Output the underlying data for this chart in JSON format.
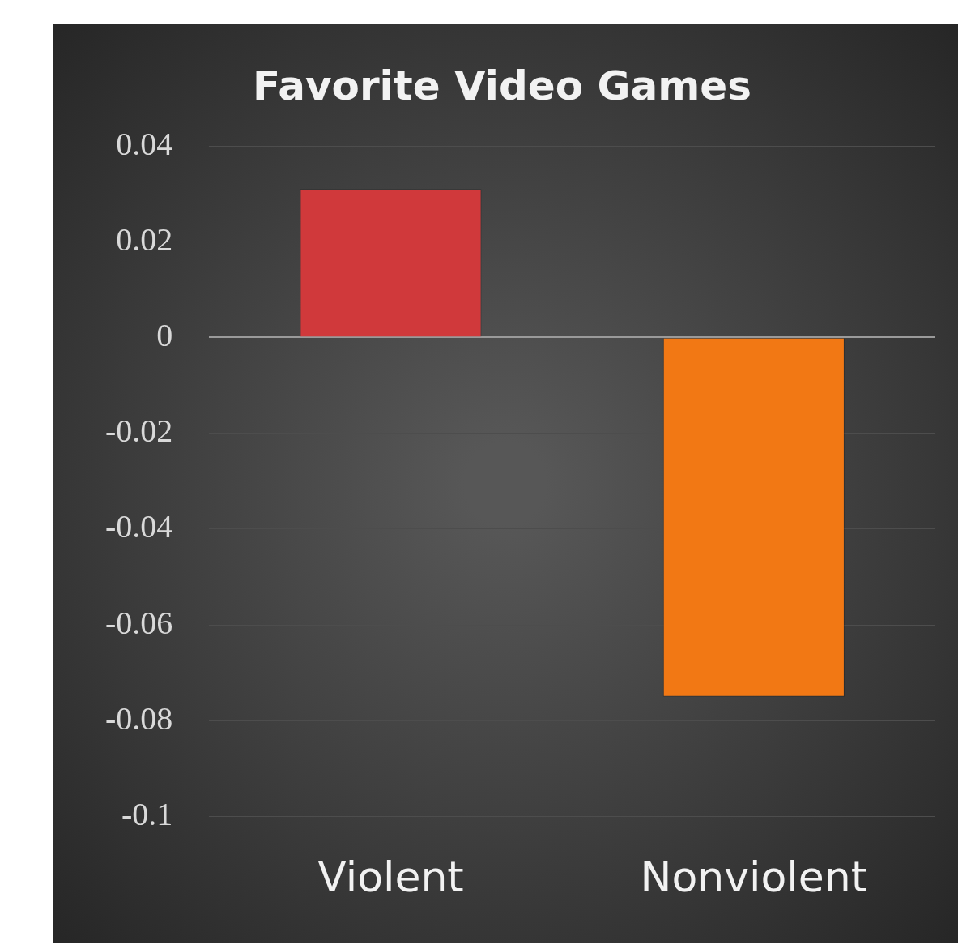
{
  "chart_data": {
    "type": "bar",
    "title": "Favorite Video Games",
    "categories": [
      "Violent",
      "Nonviolent"
    ],
    "values": [
      0.031,
      -0.075
    ],
    "colors": [
      "#d0393b",
      "#f27814"
    ],
    "ylim": [
      -0.1,
      0.04
    ],
    "yticks": [
      -0.1,
      -0.08,
      -0.06,
      -0.04,
      -0.02,
      0,
      0.02,
      0.04
    ],
    "grid": "y",
    "legend": false
  }
}
